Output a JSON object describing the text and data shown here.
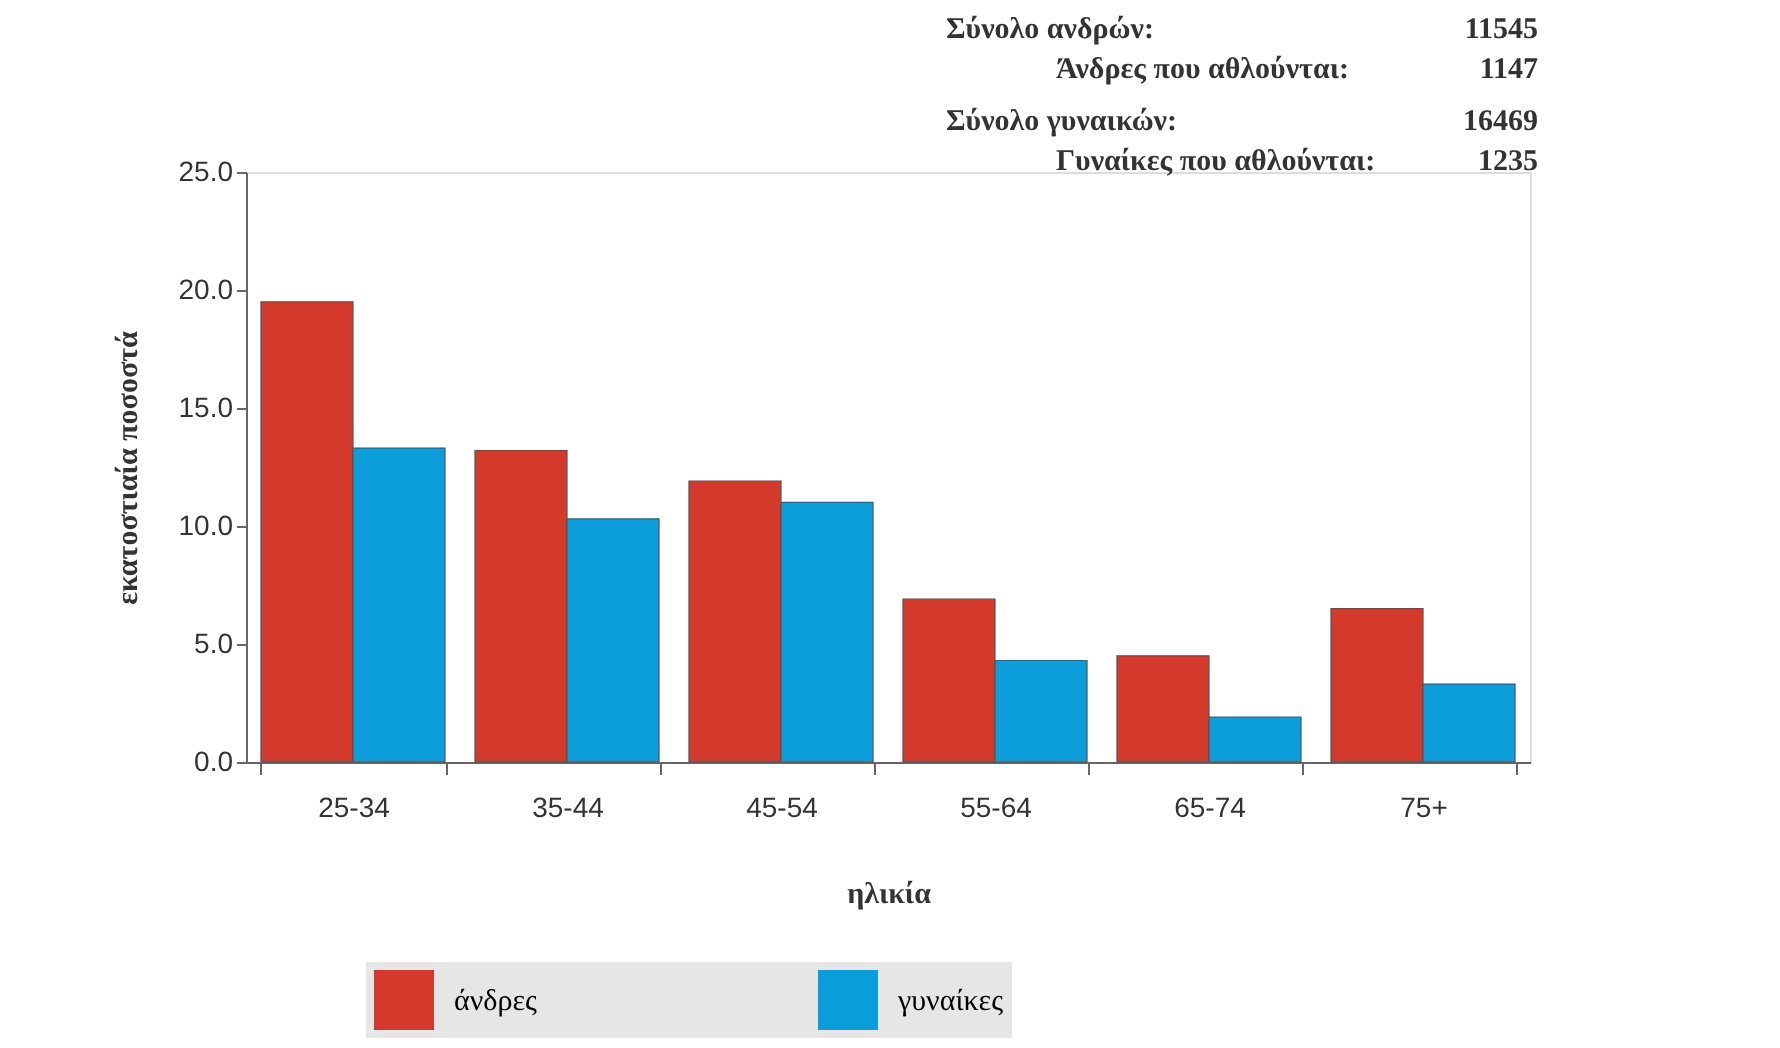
{
  "chart_data": {
    "type": "bar",
    "xlabel": "ηλικία",
    "ylabel": "εκατοστιαία ποσοστά",
    "categories": [
      "25-34",
      "35-44",
      "45-54",
      "55-64",
      "65-74",
      "75+"
    ],
    "series": [
      {
        "name": "άνδρες",
        "color": "#d33a2c",
        "values": [
          19.5,
          13.2,
          11.9,
          6.9,
          4.5,
          6.5
        ]
      },
      {
        "name": "γυναίκες",
        "color": "#0c9ddb",
        "values": [
          13.3,
          10.3,
          11.0,
          4.3,
          1.9,
          3.3
        ]
      }
    ],
    "ylim": [
      0,
      25
    ],
    "yticks": [
      {
        "value": 0,
        "label": "0.0"
      },
      {
        "value": 5,
        "label": "5.0"
      },
      {
        "value": 10,
        "label": "10.0"
      },
      {
        "value": 15,
        "label": "15.0"
      },
      {
        "value": 20,
        "label": "20.0"
      },
      {
        "value": 25,
        "label": "25.0"
      }
    ],
    "grid": false,
    "legend": "bottom",
    "annotations": [
      "Σύνολο ανδρών:",
      "11545",
      "Άνδρες που αθλούνται:",
      "1147",
      "Σύνολο γυναικών:",
      "16469",
      "Γυναίκες που αθλούνται:",
      "1235"
    ]
  }
}
